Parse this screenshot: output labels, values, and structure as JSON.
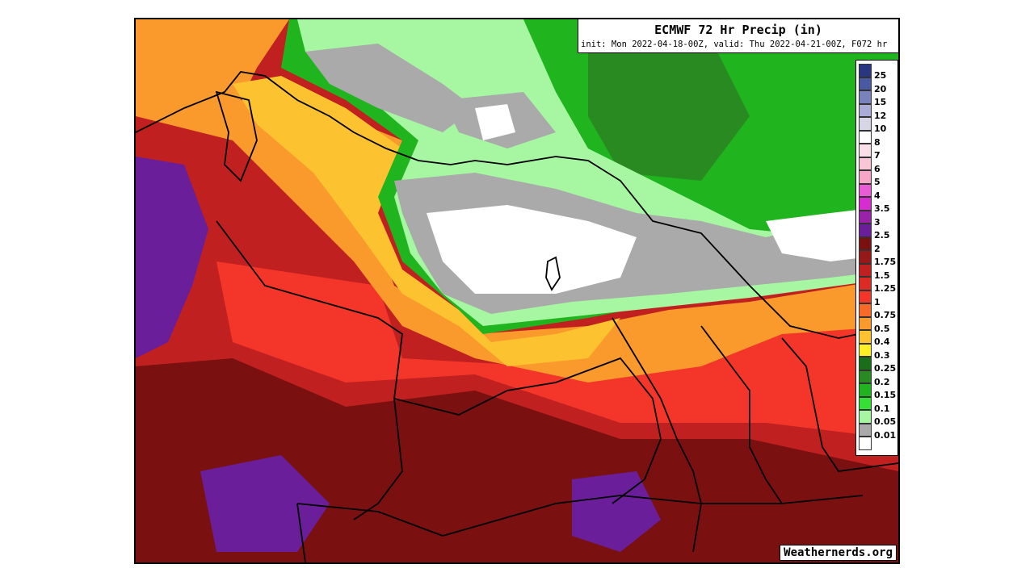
{
  "title": {
    "main": "ECMWF 72 Hr Precip (in)",
    "sub": "init: Mon 2022-04-18-00Z, valid: Thu 2022-04-21-00Z, F072 hr"
  },
  "credit": "Weathernerds.org",
  "legend": [
    {
      "label": "25",
      "color": "#2a3680"
    },
    {
      "label": "20",
      "color": "#4a5aa0"
    },
    {
      "label": "15",
      "color": "#7a82bc"
    },
    {
      "label": "12",
      "color": "#a8acd6"
    },
    {
      "label": "10",
      "color": "#d6d6e6"
    },
    {
      "label": "8",
      "color": "#ffffff"
    },
    {
      "label": "7",
      "color": "#fbe0e8"
    },
    {
      "label": "6",
      "color": "#f9c6d6"
    },
    {
      "label": "5",
      "color": "#f6a6c6"
    },
    {
      "label": "4",
      "color": "#e85cd6"
    },
    {
      "label": "3.5",
      "color": "#d62cd0"
    },
    {
      "label": "3",
      "color": "#9a22a8"
    },
    {
      "label": "2.5",
      "color": "#6a1e9a"
    },
    {
      "label": "2",
      "color": "#7a1010"
    },
    {
      "label": "1.75",
      "color": "#961818"
    },
    {
      "label": "1.5",
      "color": "#c02020"
    },
    {
      "label": "1.25",
      "color": "#dc2a24"
    },
    {
      "label": "1",
      "color": "#f4362a"
    },
    {
      "label": "0.75",
      "color": "#f86a28"
    },
    {
      "label": "0.5",
      "color": "#fa9a2c"
    },
    {
      "label": "0.4",
      "color": "#fcc230"
    },
    {
      "label": "0.3",
      "color": "#fef024"
    },
    {
      "label": "0.25",
      "color": "#1a6e1a"
    },
    {
      "label": "0.2",
      "color": "#2a8a22"
    },
    {
      "label": "0.15",
      "color": "#20b41e"
    },
    {
      "label": "0.1",
      "color": "#34e034"
    },
    {
      "label": "0.05",
      "color": "#a6f6a2"
    },
    {
      "label": "0.01",
      "color": "#aaaaaa"
    },
    {
      "label": "",
      "color": "#ffffff"
    }
  ]
}
